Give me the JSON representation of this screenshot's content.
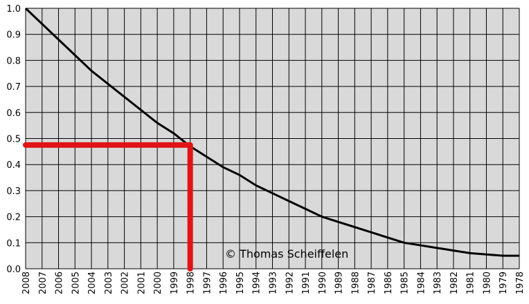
{
  "chart_data": {
    "type": "line",
    "categories": [
      "2008",
      "2007",
      "2006",
      "2005",
      "2004",
      "2003",
      "2002",
      "2001",
      "2000",
      "1999",
      "1998",
      "1997",
      "1996",
      "1995",
      "1994",
      "1993",
      "1992",
      "1991",
      "1990",
      "1989",
      "1988",
      "1987",
      "1986",
      "1985",
      "1984",
      "1983",
      "1982",
      "1981",
      "1980",
      "1979",
      "1978"
    ],
    "series": [
      {
        "color": "#000000",
        "values": [
          1.0,
          0.94,
          0.88,
          0.82,
          0.76,
          0.71,
          0.66,
          0.61,
          0.56,
          0.52,
          0.47,
          0.43,
          0.39,
          0.36,
          0.32,
          0.29,
          0.26,
          0.23,
          0.2,
          0.18,
          0.16,
          0.14,
          0.12,
          0.1,
          0.09,
          0.08,
          0.07,
          0.06,
          0.055,
          0.05,
          0.05
        ]
      }
    ],
    "ylim": [
      0,
      1
    ],
    "yticks": [
      {
        "value": 0,
        "label": "0.0"
      },
      0.1,
      0.2,
      0.3,
      0.4,
      0.5,
      0.6,
      0.7,
      0.8,
      0.9,
      {
        "value": 1,
        "label": "1.0"
      }
    ],
    "grid": true,
    "highlight": {
      "x": "1998",
      "y": 0.475,
      "color": "#e01414"
    },
    "annotation": "© Thomas Scheiffelen"
  }
}
